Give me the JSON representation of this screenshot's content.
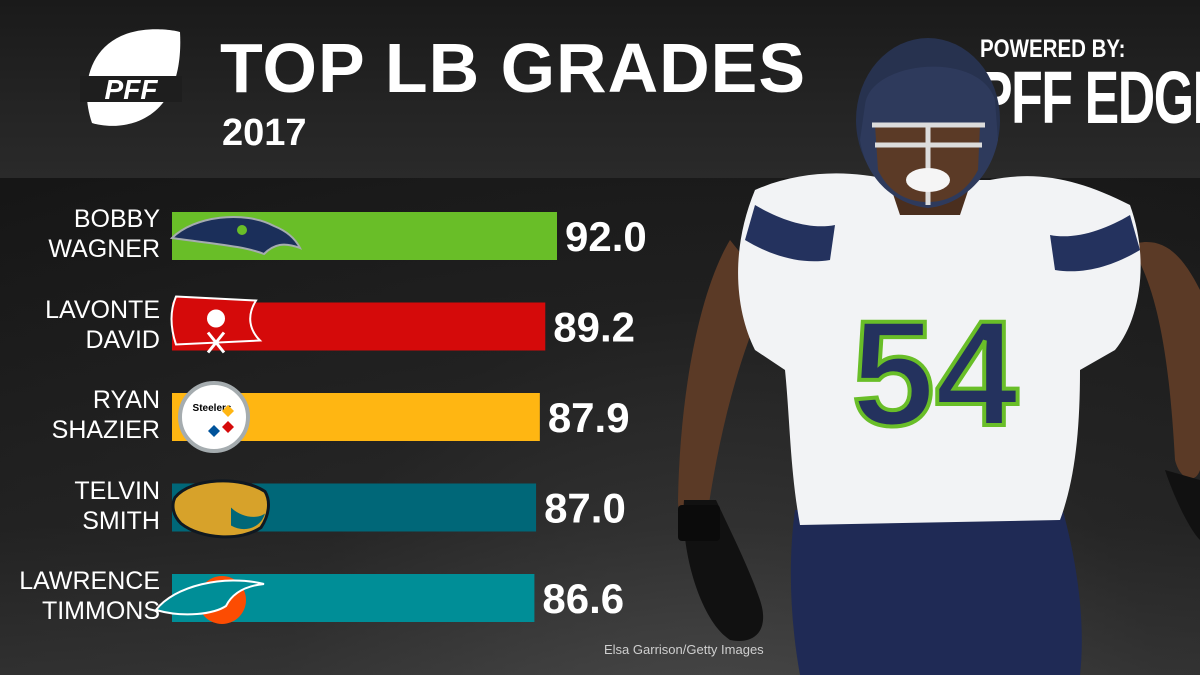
{
  "header": {
    "title": "TOP LB GRADES",
    "subtitle": "2017",
    "logo_text": "PFF",
    "powered_by": "POWERED BY:",
    "edge": "PFF EDGE"
  },
  "photo_credit": "Elsa Garrison/Getty Images",
  "jersey_number": "54",
  "chart_data": {
    "type": "bar",
    "orientation": "horizontal",
    "title": "TOP LB GRADES",
    "subtitle": "2017",
    "categories": [
      "BOBBY WAGNER",
      "LAVONTE DAVID",
      "RYAN SHAZIER",
      "TELVIN SMITH",
      "LAWRENCE TIMMONS"
    ],
    "name_lines": [
      [
        "BOBBY",
        "WAGNER"
      ],
      [
        "LAVONTE",
        "DAVID"
      ],
      [
        "RYAN",
        "SHAZIER"
      ],
      [
        "TELVIN",
        "SMITH"
      ],
      [
        "LAWRENCE",
        "TIMMONS"
      ]
    ],
    "values": [
      92.0,
      89.2,
      87.9,
      87.0,
      86.6
    ],
    "value_labels": [
      "92.0",
      "89.2",
      "87.9",
      "87.0",
      "86.6"
    ],
    "teams": [
      "seahawks-logo",
      "buccaneers-logo",
      "steelers-logo",
      "jaguars-logo",
      "dolphins-logo"
    ],
    "team_logo_text": [
      "",
      "",
      "Steelers",
      "",
      ""
    ],
    "colors": [
      "#69be28",
      "#d50a0a",
      "#ffb612",
      "#006778",
      "#008e97"
    ],
    "grid": false,
    "legend": "none"
  }
}
